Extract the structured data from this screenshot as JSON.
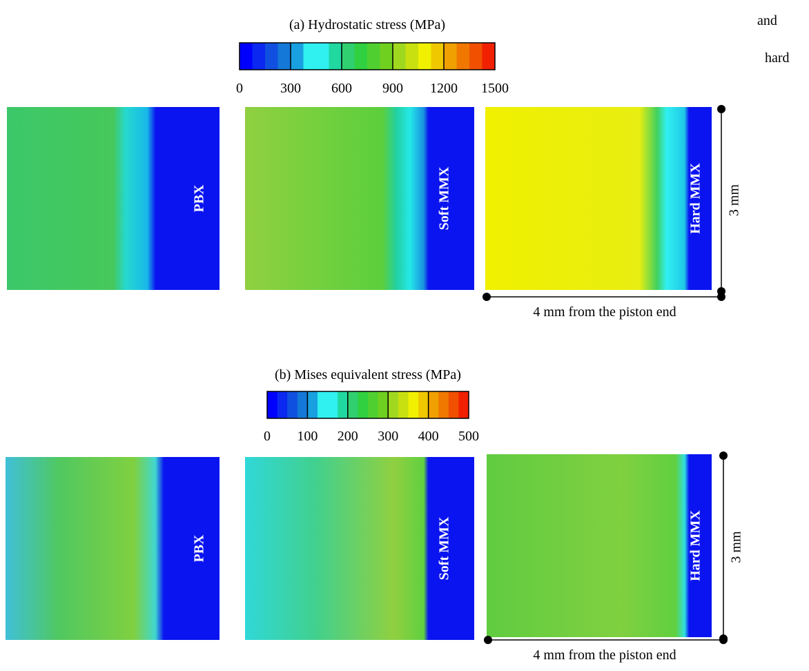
{
  "stray_text": [
    "and",
    "hard"
  ],
  "panels": [
    {
      "title": "(a) Hydrostatic stress (MPa)",
      "colorbar_ticks": [
        "0",
        "300",
        "600",
        "900",
        "1200",
        "1500"
      ],
      "materials": [
        "PBX",
        "Soft MMX",
        "Hard MMX"
      ],
      "scale_vertical": "3 mm",
      "scale_horizontal": "4 mm from the piston end"
    },
    {
      "title": "(b) Mises equivalent stress (MPa)",
      "colorbar_ticks": [
        "0",
        "100",
        "200",
        "300",
        "400",
        "500"
      ],
      "materials": [
        "PBX",
        "Soft MMX",
        "Hard MMX"
      ],
      "scale_vertical": "3 mm",
      "scale_horizontal": "4 mm from the piston end"
    }
  ]
}
